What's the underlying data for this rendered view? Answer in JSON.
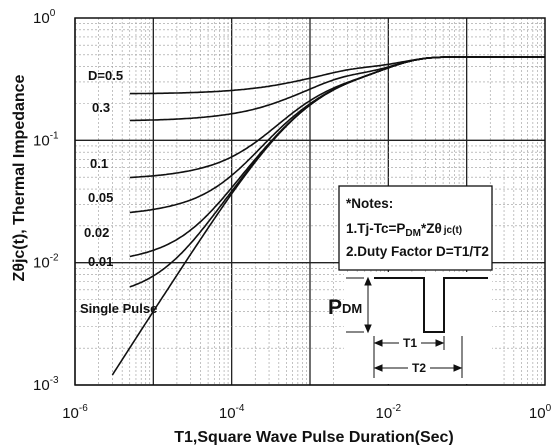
{
  "chart_data": {
    "type": "line",
    "x_scale": "log",
    "y_scale": "log",
    "xlim": [
      1e-06,
      1
    ],
    "ylim": [
      0.001,
      1
    ],
    "grid": true,
    "xlabel": "T1,Square Wave Pulse Duration(Sec)",
    "ylabel": "Zθjc(t), Thermal Impedance",
    "x_ticks": [
      {
        "base": "10",
        "exp": "-6",
        "value": 1e-06
      },
      {
        "base": "10",
        "exp": "-4",
        "value": 0.0001
      },
      {
        "base": "10",
        "exp": "-2",
        "value": 0.01
      },
      {
        "base": "10",
        "exp": "0",
        "value": 1
      }
    ],
    "y_ticks": [
      {
        "base": "10",
        "exp": "0",
        "value": 1
      },
      {
        "base": "10",
        "exp": "-1",
        "value": 0.1
      },
      {
        "base": "10",
        "exp": "-2",
        "value": 0.01
      },
      {
        "base": "10",
        "exp": "-3",
        "value": 0.001
      }
    ],
    "series": [
      {
        "name": "D=0.5",
        "duty": 0.5,
        "x": [
          5e-06,
          1e-05,
          0.0001,
          0.001,
          0.01,
          0.1,
          1
        ],
        "y": [
          0.25,
          0.25,
          0.26,
          0.3,
          0.4,
          0.46,
          0.48
        ]
      },
      {
        "name": "0.3",
        "duty": 0.3,
        "x": [
          5e-06,
          1e-05,
          0.0001,
          0.001,
          0.01,
          0.1,
          1
        ],
        "y": [
          0.15,
          0.15,
          0.16,
          0.21,
          0.35,
          0.45,
          0.48
        ]
      },
      {
        "name": "0.1",
        "duty": 0.1,
        "x": [
          5e-06,
          1e-05,
          0.0001,
          0.001,
          0.01,
          0.1,
          1
        ],
        "y": [
          0.05,
          0.05,
          0.06,
          0.13,
          0.32,
          0.44,
          0.48
        ]
      },
      {
        "name": "0.05",
        "duty": 0.05,
        "x": [
          5e-06,
          1e-05,
          0.0001,
          0.001,
          0.01,
          0.1,
          1
        ],
        "y": [
          0.025,
          0.026,
          0.045,
          0.12,
          0.31,
          0.44,
          0.48
        ]
      },
      {
        "name": "0.02",
        "duty": 0.02,
        "x": [
          5e-06,
          1e-05,
          0.0001,
          0.001,
          0.01,
          0.1,
          1
        ],
        "y": [
          0.01,
          0.011,
          0.036,
          0.115,
          0.31,
          0.44,
          0.48
        ]
      },
      {
        "name": "0.01",
        "duty": 0.01,
        "x": [
          5e-06,
          1e-05,
          0.0001,
          0.001,
          0.01,
          0.1,
          1
        ],
        "y": [
          0.005,
          0.006,
          0.033,
          0.112,
          0.31,
          0.44,
          0.48
        ]
      },
      {
        "name": "Single Pulse",
        "duty": 0,
        "x": [
          5e-06,
          1e-05,
          0.0001,
          0.001,
          0.01,
          0.1,
          1
        ],
        "y": [
          0.002,
          0.003,
          0.03,
          0.11,
          0.31,
          0.44,
          0.48
        ]
      }
    ],
    "notes": {
      "title": "*Notes:",
      "line1_a": "1.Tj-Tc=P",
      "line1_sub1": "DM",
      "line1_b": "*Zθ",
      "line1_sub2": "jc(t)",
      "line2": "2.Duty Factor D=T1/T2"
    },
    "pulse": {
      "pdm_main": "P",
      "pdm_sub": "DM",
      "t1": "T1",
      "t2": "T2"
    }
  }
}
